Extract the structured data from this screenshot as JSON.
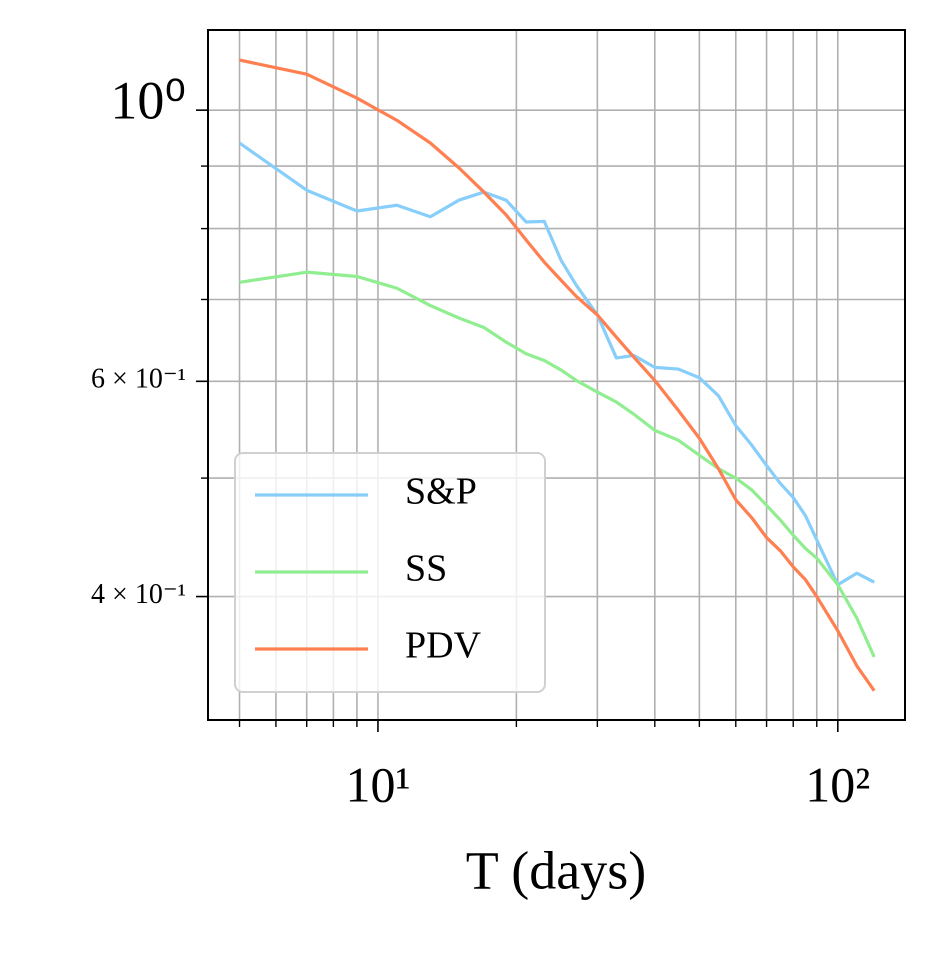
{
  "chart_data": {
    "type": "line",
    "xlabel": "T (days)",
    "xscale": "log",
    "yscale": "log",
    "grid": true,
    "legend": "lower left",
    "xlim": [
      4.27,
      140
    ],
    "ylim": [
      0.317,
      1.163
    ],
    "xticks": [
      {
        "value": 10,
        "label": "10¹"
      },
      {
        "value": 100,
        "label": "10²"
      }
    ],
    "xminor_ticks": [
      5,
      6,
      7,
      8,
      9,
      20,
      30,
      40,
      50,
      60,
      70,
      80,
      90
    ],
    "yticks": [
      {
        "value": 0.4,
        "label": "4 × 10⁻¹"
      },
      {
        "value": 0.6,
        "label": "6 × 10⁻¹"
      },
      {
        "value": 1,
        "label": "10⁰"
      }
    ],
    "yminor_ticks": [
      0.5,
      0.7,
      0.8,
      0.9
    ],
    "x": [
      5,
      7,
      9,
      11,
      13,
      15,
      17,
      19,
      21,
      23,
      25,
      27,
      30,
      33,
      36,
      40,
      45,
      50,
      55,
      60,
      65,
      70,
      75,
      80,
      85,
      90,
      100,
      110,
      120
    ],
    "series": [
      {
        "name": "S&P",
        "color": "#87cefa",
        "values": [
          0.94,
          0.86,
          0.827,
          0.836,
          0.818,
          0.844,
          0.857,
          0.844,
          0.81,
          0.811,
          0.754,
          0.719,
          0.68,
          0.627,
          0.63,
          0.616,
          0.614,
          0.604,
          0.584,
          0.552,
          0.532,
          0.512,
          0.495,
          0.482,
          0.466,
          0.445,
          0.409,
          0.418,
          0.411
        ]
      },
      {
        "name": "SS",
        "color": "#90ee90",
        "values": [
          0.723,
          0.737,
          0.731,
          0.715,
          0.692,
          0.676,
          0.664,
          0.646,
          0.632,
          0.624,
          0.613,
          0.601,
          0.588,
          0.577,
          0.564,
          0.547,
          0.537,
          0.522,
          0.509,
          0.5,
          0.489,
          0.475,
          0.462,
          0.449,
          0.438,
          0.43,
          0.409,
          0.384,
          0.357
        ]
      },
      {
        "name": "PDV",
        "color": "#ff7f50",
        "values": [
          1.099,
          1.07,
          1.023,
          0.981,
          0.94,
          0.897,
          0.857,
          0.821,
          0.783,
          0.751,
          0.726,
          0.704,
          0.68,
          0.652,
          0.628,
          0.601,
          0.568,
          0.539,
          0.509,
          0.48,
          0.464,
          0.447,
          0.436,
          0.423,
          0.413,
          0.4,
          0.375,
          0.351,
          0.335
        ]
      }
    ]
  }
}
